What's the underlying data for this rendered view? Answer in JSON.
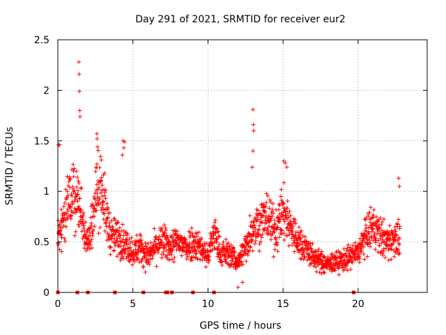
{
  "chart_data": {
    "type": "scatter",
    "title": "Day 291 of 2021, SRMTID for receiver eur2",
    "xlabel": "GPS time / hours",
    "ylabel": "SRMTID / TECUs",
    "xlim": [
      0,
      24.6
    ],
    "ylim": [
      0,
      2.5
    ],
    "x_ticks": [
      0,
      5,
      10,
      15,
      20
    ],
    "y_ticks": [
      0,
      0.5,
      1,
      1.5,
      2,
      2.5
    ],
    "x_tick_labels": [
      "0",
      "5",
      "10",
      "15",
      "20"
    ],
    "y_tick_labels": [
      "0",
      "0.5",
      "1",
      "1.5",
      "2",
      "2.5"
    ],
    "grid": true,
    "marker": "+",
    "series": [
      {
        "name": "SRMTID",
        "color": "#ff0000",
        "profile": [
          [
            0.0,
            0.55
          ],
          [
            0.3,
            0.7
          ],
          [
            0.7,
            0.85
          ],
          [
            1.0,
            0.95
          ],
          [
            1.4,
            0.9
          ],
          [
            1.8,
            0.6
          ],
          [
            2.1,
            0.5
          ],
          [
            2.5,
            0.95
          ],
          [
            2.9,
            1.1
          ],
          [
            3.2,
            0.75
          ],
          [
            3.6,
            0.55
          ],
          [
            4.0,
            0.55
          ],
          [
            4.5,
            0.48
          ],
          [
            5.0,
            0.4
          ],
          [
            5.5,
            0.45
          ],
          [
            6.0,
            0.35
          ],
          [
            6.5,
            0.45
          ],
          [
            7.0,
            0.5
          ],
          [
            7.5,
            0.45
          ],
          [
            8.0,
            0.5
          ],
          [
            8.5,
            0.45
          ],
          [
            9.0,
            0.5
          ],
          [
            9.5,
            0.45
          ],
          [
            10.0,
            0.35
          ],
          [
            10.4,
            0.6
          ],
          [
            10.8,
            0.4
          ],
          [
            11.5,
            0.38
          ],
          [
            12.0,
            0.3
          ],
          [
            12.5,
            0.45
          ],
          [
            13.0,
            0.65
          ],
          [
            13.5,
            0.7
          ],
          [
            14.0,
            0.75
          ],
          [
            14.5,
            0.6
          ],
          [
            15.0,
            0.8
          ],
          [
            15.5,
            0.65
          ],
          [
            16.0,
            0.5
          ],
          [
            16.5,
            0.45
          ],
          [
            17.0,
            0.35
          ],
          [
            17.5,
            0.3
          ],
          [
            18.0,
            0.28
          ],
          [
            18.5,
            0.3
          ],
          [
            19.0,
            0.32
          ],
          [
            19.5,
            0.35
          ],
          [
            20.0,
            0.4
          ],
          [
            20.5,
            0.55
          ],
          [
            21.0,
            0.65
          ],
          [
            21.5,
            0.55
          ],
          [
            22.0,
            0.5
          ],
          [
            22.5,
            0.55
          ],
          [
            22.8,
            0.5
          ]
        ],
        "outliers": [
          [
            0.05,
            1.46
          ],
          [
            0.12,
            1.46
          ],
          [
            1.4,
            2.28
          ],
          [
            1.42,
            2.16
          ],
          [
            1.44,
            1.99
          ],
          [
            1.46,
            1.8
          ],
          [
            1.48,
            1.74
          ],
          [
            2.6,
            1.57
          ],
          [
            2.62,
            1.52
          ],
          [
            2.65,
            1.44
          ],
          [
            2.6,
            1.27
          ],
          [
            4.35,
            1.5
          ],
          [
            4.45,
            1.49
          ],
          [
            4.4,
            1.43
          ],
          [
            4.3,
            1.36
          ],
          [
            13.0,
            1.81
          ],
          [
            13.02,
            1.66
          ],
          [
            13.04,
            1.6
          ],
          [
            13.0,
            1.4
          ],
          [
            12.95,
            1.24
          ],
          [
            15.05,
            1.3
          ],
          [
            15.15,
            1.28
          ],
          [
            15.25,
            1.24
          ],
          [
            22.7,
            1.13
          ],
          [
            22.75,
            1.05
          ],
          [
            12.0,
            0.05
          ],
          [
            12.3,
            0.1
          ]
        ],
        "zero_values": [
          0.0,
          1.3,
          2.0,
          3.8,
          5.7,
          7.2,
          7.3,
          7.6,
          9.0,
          10.4,
          19.7
        ]
      }
    ]
  }
}
